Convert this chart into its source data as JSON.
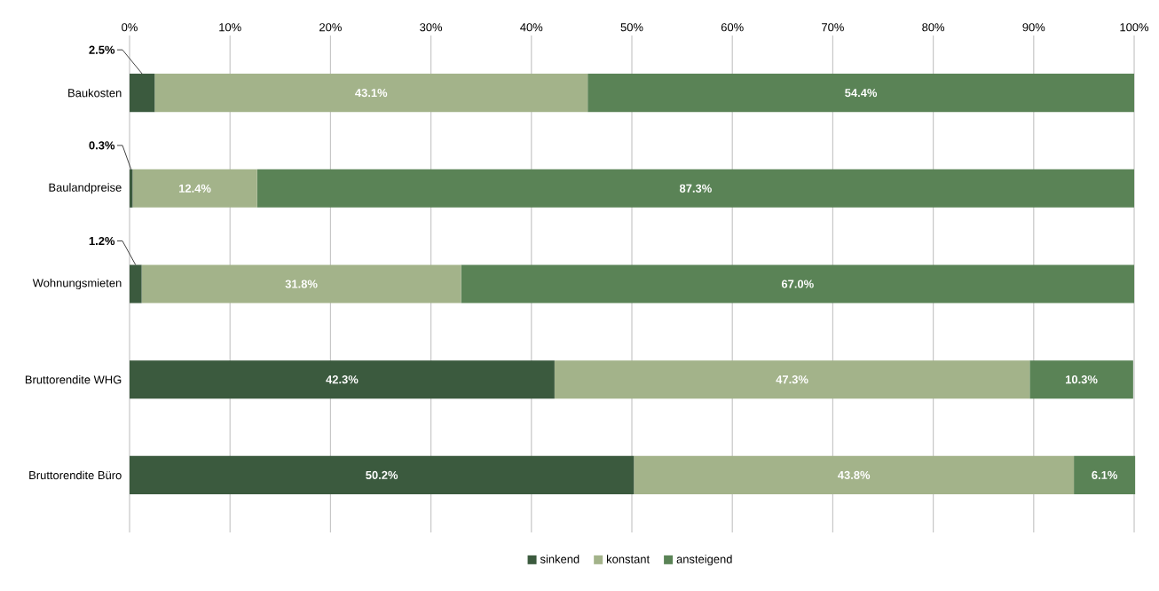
{
  "chart_data": {
    "type": "bar",
    "orientation": "horizontal",
    "stacked": true,
    "categories": [
      "Baukosten",
      "Baulandpreise",
      "Wohnungsmieten",
      "Bruttorendite WHG",
      "Bruttorendite Büro"
    ],
    "series": [
      {
        "name": "sinkend",
        "color": "#3b5a3e",
        "values": [
          2.5,
          0.3,
          1.2,
          42.3,
          50.2
        ],
        "value_labels": [
          "2.5%",
          "0.3%",
          "1.2%",
          "42.3%",
          "50.2%"
        ]
      },
      {
        "name": "konstant",
        "color": "#a3b38a",
        "values": [
          43.1,
          12.4,
          31.8,
          47.3,
          43.8
        ],
        "value_labels": [
          "43.1%",
          "12.4%",
          "31.8%",
          "47.3%",
          "43.8%"
        ]
      },
      {
        "name": "ansteigend",
        "color": "#5a8356",
        "values": [
          54.4,
          87.3,
          67.0,
          10.3,
          6.1
        ],
        "value_labels": [
          "54.4%",
          "87.3%",
          "67.0%",
          "10.3%",
          "6.1%"
        ]
      }
    ],
    "xlim": [
      0,
      100
    ],
    "xticks": [
      {
        "value": 0,
        "label": "0%"
      },
      {
        "value": 10,
        "label": "10%"
      },
      {
        "value": 20,
        "label": "20%"
      },
      {
        "value": 30,
        "label": "30%"
      },
      {
        "value": 40,
        "label": "40%"
      },
      {
        "value": 50,
        "label": "50%"
      },
      {
        "value": 60,
        "label": "60%"
      },
      {
        "value": 70,
        "label": "70%"
      },
      {
        "value": 80,
        "label": "80%"
      },
      {
        "value": 90,
        "label": "90%"
      },
      {
        "value": 100,
        "label": "100%"
      }
    ],
    "grid": "x",
    "legend": "bottom"
  }
}
